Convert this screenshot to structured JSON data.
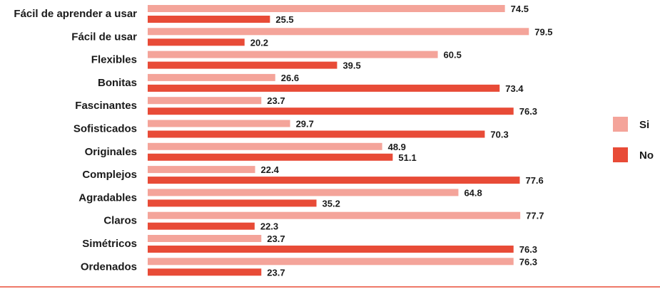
{
  "chart_data": {
    "type": "bar",
    "orientation": "horizontal",
    "categories": [
      "Fácil de aprender a usar",
      "Fácil de usar",
      "Flexibles",
      "Bonitas",
      "Fascinantes",
      "Sofisticados",
      "Originales",
      "Complejos",
      "Agradables",
      "Claros",
      "Simétricos",
      "Ordenados"
    ],
    "series": [
      {
        "name": "Si",
        "color": "#f4a49a",
        "values": [
          74.5,
          79.5,
          60.5,
          26.6,
          23.7,
          29.7,
          48.9,
          22.4,
          64.8,
          77.7,
          23.7,
          76.3
        ]
      },
      {
        "name": "No",
        "color": "#e84b37",
        "values": [
          25.5,
          20.2,
          39.5,
          73.4,
          76.3,
          70.3,
          51.1,
          77.6,
          35.2,
          22.3,
          76.3,
          23.7
        ]
      }
    ],
    "xlim": [
      0,
      100
    ],
    "value_labels": [
      "74.5",
      "25.5",
      "79.5",
      "20.2",
      "60.5",
      "39.5",
      "26.6",
      "73.4",
      "23.7",
      "76.3",
      "29.7",
      "70.3",
      "48.9",
      "51.1",
      "22.4",
      "77.6",
      "64.8",
      "35.2",
      "77.7",
      "22.3",
      "23.7",
      "76.3",
      "76.3",
      "23.7"
    ],
    "legend": {
      "position": "right",
      "items": [
        "Si",
        "No"
      ]
    },
    "title": "",
    "xlabel": "",
    "ylabel": "",
    "baseline_color": "#e84b37"
  }
}
